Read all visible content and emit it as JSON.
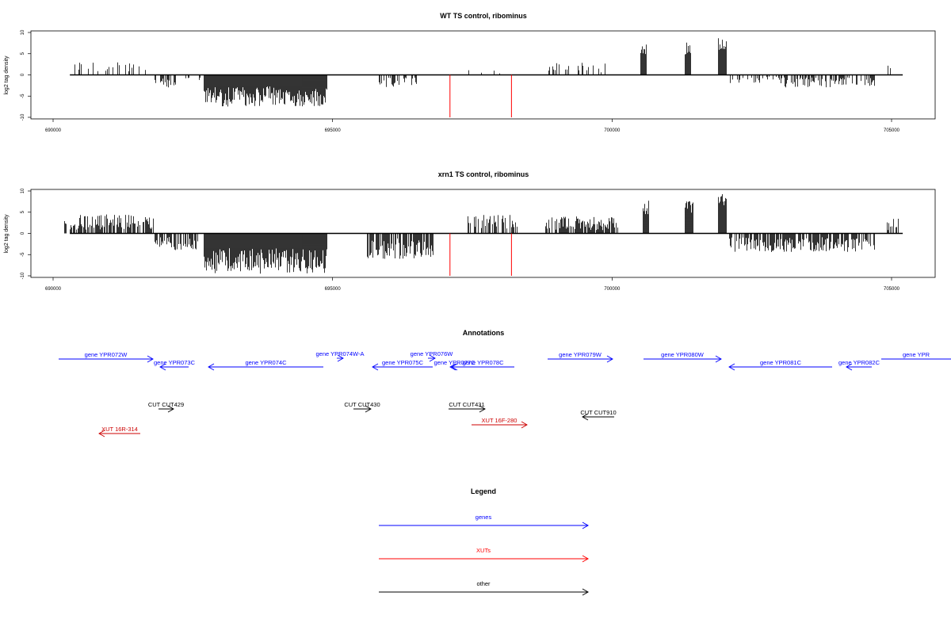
{
  "chart_data": [
    {
      "type": "bar",
      "title": "WT TS control, ribominus",
      "ylabel": "log2 tag density",
      "xlim": [
        690000,
        705000
      ],
      "ylim": [
        -10,
        10
      ],
      "xticks": [
        "690000",
        "695000",
        "700000",
        "705000"
      ],
      "yticks": [
        "10",
        "5",
        "0",
        "-5",
        "-10"
      ],
      "segments": [
        {
          "start": 690300,
          "end": 691700,
          "min": 0,
          "max": 3.2,
          "density": 0.25
        },
        {
          "start": 691800,
          "end": 692200,
          "min": -3,
          "max": 0,
          "density": 0.5
        },
        {
          "start": 692200,
          "end": 692700,
          "min": -1.5,
          "max": 0,
          "density": 0.2
        },
        {
          "start": 692700,
          "end": 694900,
          "min": -7.5,
          "max": -1.5,
          "density": 1.0
        },
        {
          "start": 695800,
          "end": 696500,
          "min": -3,
          "max": 0,
          "density": 0.35
        },
        {
          "start": 697300,
          "end": 698000,
          "min": 0,
          "max": 1.2,
          "density": 0.1
        },
        {
          "start": 698800,
          "end": 700000,
          "min": 0,
          "max": 3,
          "density": 0.3
        },
        {
          "start": 700500,
          "end": 700600,
          "min": 3,
          "max": 7.5,
          "density": 1.0
        },
        {
          "start": 701300,
          "end": 701400,
          "min": 4,
          "max": 8.2,
          "density": 1.0
        },
        {
          "start": 701900,
          "end": 702050,
          "min": 5,
          "max": 9.2,
          "density": 1.0
        },
        {
          "start": 702100,
          "end": 703000,
          "min": -2,
          "max": 0,
          "density": 0.35
        },
        {
          "start": 703000,
          "end": 704700,
          "min": -3,
          "max": 0,
          "density": 0.55
        },
        {
          "start": 704900,
          "end": 705150,
          "min": 0,
          "max": 2.2,
          "density": 0.3
        }
      ],
      "red_marks": [
        697100,
        698200
      ]
    },
    {
      "type": "bar",
      "title": "xrn1 TS control, ribominus",
      "ylabel": "log2 tag density",
      "xlim": [
        690000,
        705000
      ],
      "ylim": [
        -10,
        10
      ],
      "xticks": [
        "690000",
        "695000",
        "700000",
        "705000"
      ],
      "yticks": [
        "10",
        "5",
        "0",
        "-5",
        "-10"
      ],
      "segments": [
        {
          "start": 690200,
          "end": 691800,
          "min": 0,
          "max": 4.5,
          "density": 0.7
        },
        {
          "start": 691800,
          "end": 692600,
          "min": -4,
          "max": 0,
          "density": 0.7
        },
        {
          "start": 692700,
          "end": 694900,
          "min": -9.5,
          "max": -2,
          "density": 1.0
        },
        {
          "start": 695600,
          "end": 696800,
          "min": -6,
          "max": 0,
          "density": 0.8
        },
        {
          "start": 697400,
          "end": 698300,
          "min": 0,
          "max": 4.5,
          "density": 0.55
        },
        {
          "start": 698800,
          "end": 700100,
          "min": 0,
          "max": 4,
          "density": 0.75
        },
        {
          "start": 700550,
          "end": 700650,
          "min": 3,
          "max": 7.8,
          "density": 1.0
        },
        {
          "start": 701300,
          "end": 701450,
          "min": 4,
          "max": 8.2,
          "density": 1.0
        },
        {
          "start": 701900,
          "end": 702050,
          "min": 5,
          "max": 9.5,
          "density": 1.0
        },
        {
          "start": 702100,
          "end": 704700,
          "min": -4.5,
          "max": 0,
          "density": 0.75
        },
        {
          "start": 704900,
          "end": 705150,
          "min": 0,
          "max": 3.8,
          "density": 0.6
        }
      ],
      "red_marks": [
        697100,
        698200
      ]
    }
  ],
  "annotations": {
    "title": "Annotations",
    "genes": [
      {
        "label": "gene YPR072W",
        "x1": 74,
        "x2": 193,
        "y": 453,
        "dir": "right"
      },
      {
        "label": "gene YPR073C",
        "x1": 202,
        "x2": 238,
        "y": 463,
        "dir": "left"
      },
      {
        "label": "gene YPR074C",
        "x1": 263,
        "x2": 408,
        "y": 463,
        "dir": "left"
      },
      {
        "label": "gene YPR074W-A",
        "x1": 425,
        "x2": 433,
        "y": 452,
        "dir": "right"
      },
      {
        "label": "gene YPR075C",
        "x1": 470,
        "x2": 546,
        "y": 463,
        "dir": "left"
      },
      {
        "label": "gene YPR076W",
        "x1": 540,
        "x2": 549,
        "y": 452,
        "dir": "right"
      },
      {
        "label": "gene YPR077C",
        "x1": 568,
        "x2": 579,
        "y": 463,
        "dir": "left"
      },
      {
        "label": "gene YPR078C",
        "x1": 570,
        "x2": 649,
        "y": 463,
        "dir": "left"
      },
      {
        "label": "gene YPR079W",
        "x1": 691,
        "x2": 773,
        "y": 453,
        "dir": "right"
      },
      {
        "label": "gene YPR080W",
        "x1": 812,
        "x2": 910,
        "y": 453,
        "dir": "right"
      },
      {
        "label": "gene YPR081C",
        "x1": 920,
        "x2": 1050,
        "y": 463,
        "dir": "left"
      },
      {
        "label": "gene YPR082C",
        "x1": 1068,
        "x2": 1100,
        "y": 463,
        "dir": "left"
      },
      {
        "label": "gene YPR",
        "x1": 1112,
        "x2": 1200,
        "y": 453,
        "dir": "right"
      }
    ],
    "xuts": [
      {
        "label": "XUT 16R-314",
        "x1": 125,
        "x2": 177,
        "y": 547,
        "dir": "left"
      },
      {
        "label": "XUT 16F-280",
        "x1": 595,
        "x2": 665,
        "y": 536,
        "dir": "right"
      }
    ],
    "others": [
      {
        "label": "CUT CUT429",
        "x1": 200,
        "x2": 219,
        "y": 516,
        "dir": "right"
      },
      {
        "label": "CUT CUT430",
        "x1": 446,
        "x2": 468,
        "y": 516,
        "dir": "right"
      },
      {
        "label": "CUT CUT431",
        "x1": 566,
        "x2": 612,
        "y": 516,
        "dir": "right"
      },
      {
        "label": "CUT CUT910",
        "x1": 735,
        "x2": 775,
        "y": 526,
        "dir": "left"
      }
    ]
  },
  "legend": {
    "title": "Legend",
    "items": [
      {
        "label": "genes",
        "color": "#0000ff"
      },
      {
        "label": "XUTs",
        "color": "#ff0000"
      },
      {
        "label": "other",
        "color": "#000000"
      }
    ]
  },
  "colors": {
    "genes": "#0000ff",
    "xuts": "#cc0000",
    "other": "#000000",
    "red_marks": "#ff0000"
  }
}
